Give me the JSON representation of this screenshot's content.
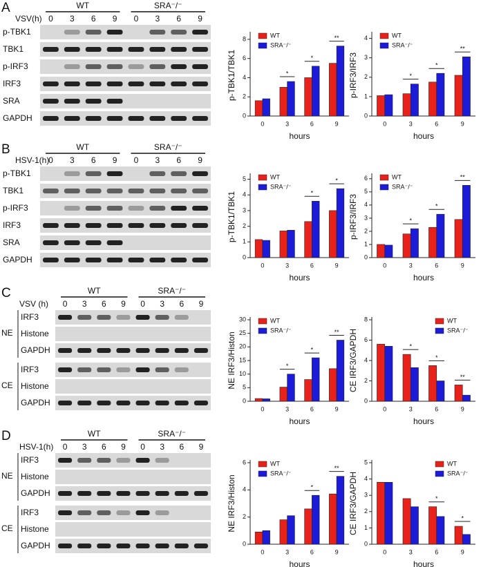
{
  "blots": [
    {
      "label": "A",
      "treatment": "VSV(h)",
      "groups": [
        "WT",
        "SRA⁻/⁻"
      ],
      "lanes": [
        "0",
        "3",
        "6",
        "9",
        "0",
        "3",
        "6",
        "9"
      ],
      "rows": [
        "p-TBK1",
        "TBK1",
        "p-IRF3",
        "IRF3",
        "SRA",
        "GAPDH"
      ]
    },
    {
      "label": "B",
      "treatment": "HSV-1(h)",
      "groups": [
        "WT",
        "SRA⁻/⁻"
      ],
      "lanes": [
        "0",
        "3",
        "6",
        "9",
        "0",
        "3",
        "6",
        "9"
      ],
      "rows": [
        "p-TBK1",
        "TBK1",
        "p-IRF3",
        "IRF3",
        "SRA",
        "GAPDH"
      ]
    },
    {
      "label": "C",
      "treatment": "VSV (h)",
      "groups": [
        "WT",
        "SRA⁻/⁻"
      ],
      "lanes": [
        "0",
        "3",
        "6",
        "9",
        "0",
        "3",
        "6",
        "9"
      ],
      "fractions": [
        {
          "name": "NE",
          "rows": [
            "IRF3",
            "Histone",
            "GAPDH"
          ]
        },
        {
          "name": "CE",
          "rows": [
            "IRF3",
            "Histone",
            "GAPDH"
          ]
        }
      ]
    },
    {
      "label": "D",
      "treatment": "HSV-1(h)",
      "groups": [
        "WT",
        "SRA⁻/⁻"
      ],
      "lanes": [
        "0",
        "3",
        "6",
        "9",
        "0",
        "3",
        "6",
        "9"
      ],
      "fractions": [
        {
          "name": "NE",
          "rows": [
            "IRF3",
            "Histone",
            "GAPDH"
          ]
        },
        {
          "name": "CE",
          "rows": [
            "IRF3",
            "Histone",
            "GAPDH"
          ]
        }
      ]
    }
  ],
  "chart_data": [
    {
      "type": "bar",
      "ylabel": "p-TBK1/TBK1",
      "xlabel": "hours",
      "categories": [
        "0",
        "3",
        "6",
        "9"
      ],
      "legend": "upper left",
      "series": [
        {
          "name": "WT",
          "color": "#e8221a",
          "values": [
            1.6,
            3.0,
            4.0,
            5.5
          ]
        },
        {
          "name": "SRA⁻/⁻",
          "color": "#1c1cd8",
          "values": [
            1.8,
            3.6,
            5.2,
            7.3
          ]
        }
      ],
      "ylim": [
        0,
        8.5
      ],
      "yticks": [
        0,
        2,
        4,
        6,
        8
      ],
      "significance": [
        null,
        "*",
        "*",
        "**"
      ]
    },
    {
      "type": "bar",
      "ylabel": "p-IRF3/IRF3",
      "xlabel": "hours",
      "categories": [
        "0",
        "3",
        "6",
        "9"
      ],
      "legend": "upper left",
      "series": [
        {
          "name": "WT",
          "color": "#e8221a",
          "values": [
            1.05,
            1.15,
            1.75,
            2.1
          ]
        },
        {
          "name": "SRA⁻/⁻",
          "color": "#1c1cd8",
          "values": [
            1.1,
            1.65,
            2.2,
            3.05
          ]
        }
      ],
      "ylim": [
        0,
        4.2
      ],
      "yticks": [
        0,
        1,
        2,
        3,
        4
      ],
      "significance": [
        null,
        "*",
        "*",
        "**"
      ]
    },
    {
      "type": "bar",
      "ylabel": "p-TBK1/TBK1",
      "xlabel": "hours",
      "categories": [
        "0",
        "3",
        "6",
        "9"
      ],
      "legend": "upper left",
      "series": [
        {
          "name": "WT",
          "color": "#e8221a",
          "values": [
            1.15,
            1.7,
            2.3,
            3.0
          ]
        },
        {
          "name": "SRA⁻/⁻",
          "color": "#1c1cd8",
          "values": [
            1.1,
            1.75,
            3.6,
            4.4
          ]
        }
      ],
      "ylim": [
        0,
        5.2
      ],
      "yticks": [
        0,
        1,
        2,
        3,
        4,
        5
      ],
      "significance": [
        null,
        null,
        "*",
        "*"
      ]
    },
    {
      "type": "bar",
      "ylabel": "p-IRF3/IRF3",
      "xlabel": "hours",
      "categories": [
        "0",
        "3",
        "6",
        "9"
      ],
      "legend": "upper left",
      "series": [
        {
          "name": "WT",
          "color": "#e8221a",
          "values": [
            1.0,
            1.8,
            2.3,
            2.9
          ]
        },
        {
          "name": "SRA⁻/⁻",
          "color": "#1c1cd8",
          "values": [
            0.95,
            2.2,
            3.3,
            5.5
          ]
        }
      ],
      "ylim": [
        0,
        6.2
      ],
      "yticks": [
        0,
        1,
        2,
        3,
        4,
        5,
        6
      ],
      "significance": [
        null,
        "*",
        "*",
        "**"
      ]
    },
    {
      "type": "bar",
      "ylabel": "NE IRF3/Histon",
      "xlabel": "hours",
      "categories": [
        "0",
        "3",
        "6",
        "9"
      ],
      "legend": "upper left",
      "series": [
        {
          "name": "WT",
          "color": "#e8221a",
          "values": [
            1.0,
            5.2,
            8.0,
            12.0
          ]
        },
        {
          "name": "SRA⁻/⁻",
          "color": "#1c1cd8",
          "values": [
            0.9,
            10.0,
            16.0,
            22.5
          ]
        }
      ],
      "ylim": [
        0,
        30
      ],
      "yticks": [
        0,
        5,
        10,
        15,
        20,
        25,
        30
      ],
      "significance": [
        null,
        "*",
        "*",
        "**"
      ]
    },
    {
      "type": "bar",
      "ylabel": "CE IRF3/GAPDH",
      "xlabel": "hours",
      "categories": [
        "0",
        "3",
        "6",
        "9"
      ],
      "legend": "upper right",
      "series": [
        {
          "name": "WT",
          "color": "#e8221a",
          "values": [
            5.6,
            4.6,
            3.5,
            1.6
          ]
        },
        {
          "name": "SRA⁻/⁻",
          "color": "#1c1cd8",
          "values": [
            5.4,
            3.3,
            2.0,
            0.6
          ]
        }
      ],
      "ylim": [
        0,
        8
      ],
      "yticks": [
        0,
        2,
        4,
        6,
        8
      ],
      "significance": [
        null,
        "*",
        "*",
        "**"
      ]
    },
    {
      "type": "bar",
      "ylabel": "NE IRF3/Histon",
      "xlabel": "hours",
      "categories": [
        "0",
        "3",
        "6",
        "9"
      ],
      "legend": "upper left",
      "series": [
        {
          "name": "WT",
          "color": "#e8221a",
          "values": [
            0.9,
            1.8,
            2.6,
            3.7
          ]
        },
        {
          "name": "SRA⁻/⁻",
          "color": "#1c1cd8",
          "values": [
            1.0,
            2.1,
            3.6,
            5.0
          ]
        }
      ],
      "ylim": [
        0,
        6
      ],
      "yticks": [
        0,
        2,
        4,
        6
      ],
      "significance": [
        null,
        null,
        "*",
        "**"
      ]
    },
    {
      "type": "bar",
      "ylabel": "CE IRF3/GAPDH",
      "xlabel": "hours",
      "categories": [
        "0",
        "3",
        "6",
        "9"
      ],
      "legend": "upper right",
      "series": [
        {
          "name": "WT",
          "color": "#e8221a",
          "values": [
            3.8,
            2.8,
            2.3,
            1.1
          ]
        },
        {
          "name": "SRA⁻/⁻",
          "color": "#1c1cd8",
          "values": [
            3.8,
            2.3,
            1.7,
            0.6
          ]
        }
      ],
      "ylim": [
        0,
        5
      ],
      "yticks": [
        0,
        1,
        2,
        3,
        4,
        5
      ],
      "significance": [
        null,
        null,
        "*",
        "*"
      ]
    }
  ]
}
